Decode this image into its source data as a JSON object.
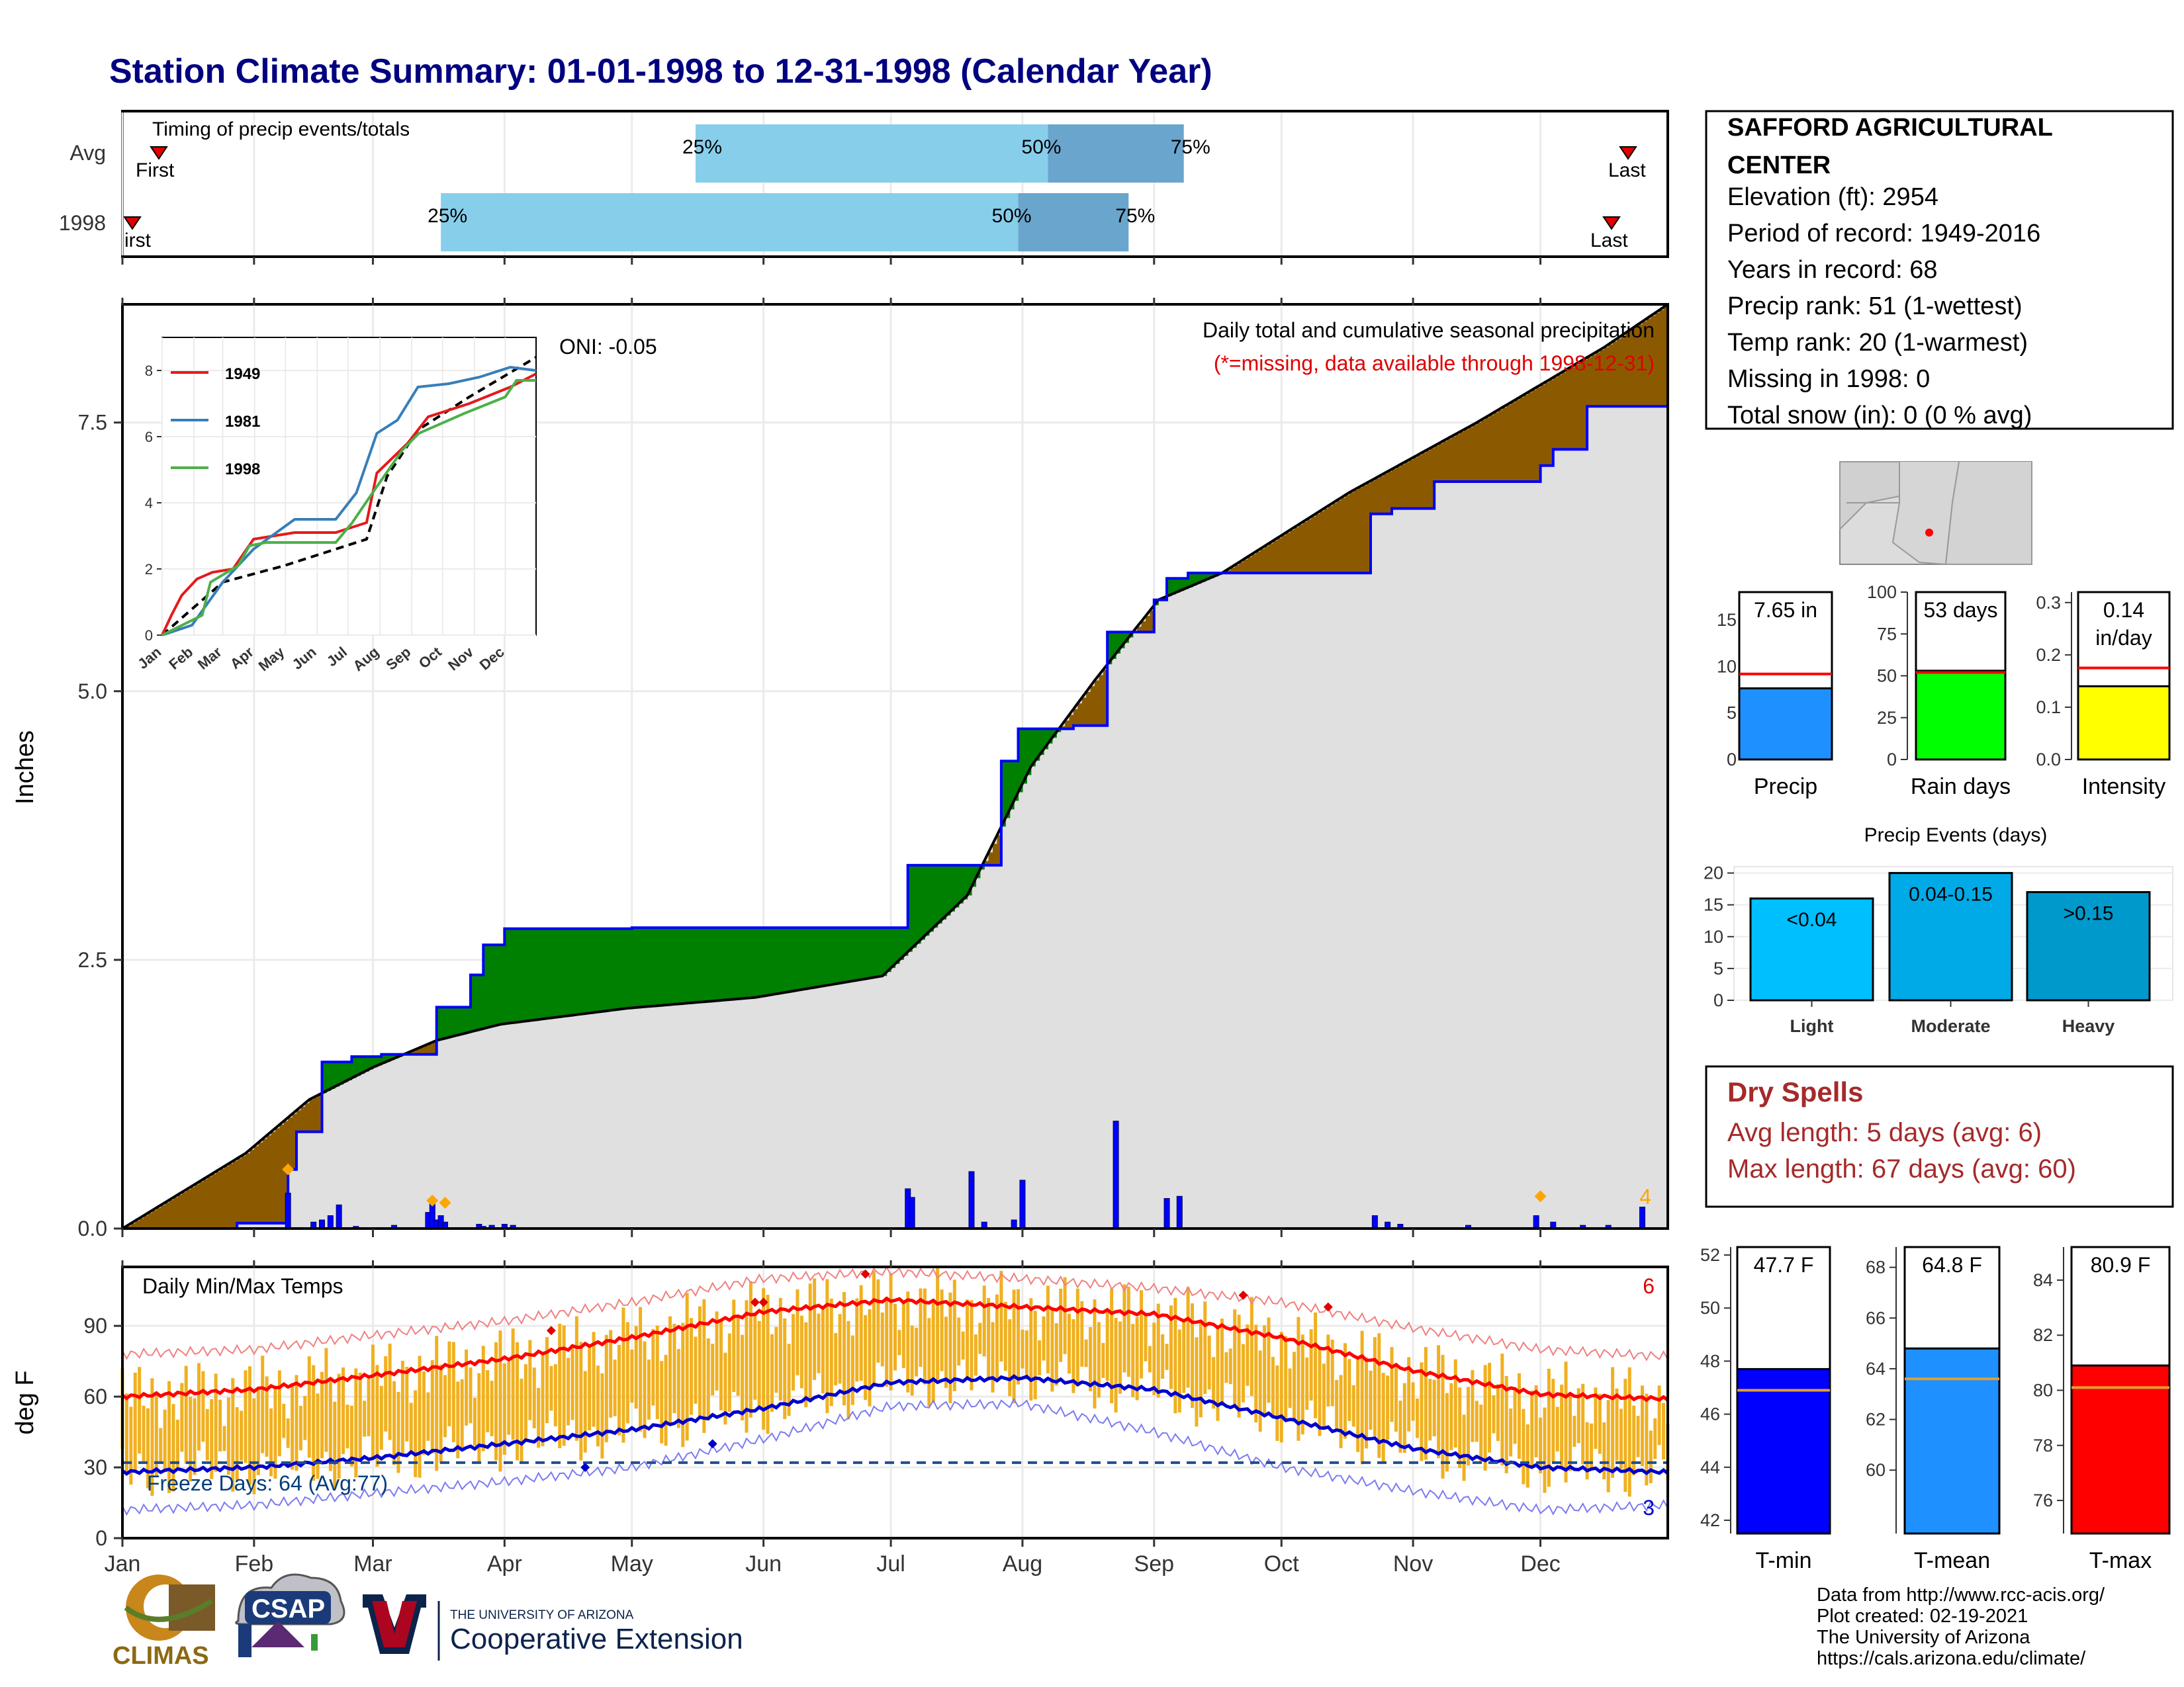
{
  "title": "Station Climate Summary: 01-01-1998 to 12-31-1998 (Calendar Year)",
  "months": [
    "Jan",
    "Feb",
    "Mar",
    "Apr",
    "May",
    "Jun",
    "Jul",
    "Aug",
    "Sep",
    "Oct",
    "Nov",
    "Dec"
  ],
  "timing": {
    "label": "Timing of precip events/totals",
    "rows": [
      "Avg",
      "1998"
    ],
    "first_label": "First",
    "first_label_1998": "irst",
    "last_label": "Last",
    "pct_labels": [
      "25%",
      "50%",
      "75%"
    ]
  },
  "station": {
    "name_line1": "SAFFORD AGRICULTURAL",
    "name_line2": "CENTER",
    "elevation": "Elevation (ft): 2954",
    "period": "Period of record: 1949-2016",
    "years": "Years in record: 68",
    "precip_rank": "Precip rank: 51 (1-wettest)",
    "temp_rank": "Temp rank: 20 (1-warmest)",
    "missing": "Missing in 1998: 0",
    "snow": "Total snow (in): 0 (0 % avg)"
  },
  "precip_panel": {
    "ylabel": "Inches",
    "oni": "ONI: -0.05",
    "desc": "Daily total and cumulative seasonal precipitation",
    "missing_note": "(*=missing, data available through 1998-12-31)",
    "count_label": "4",
    "yticks": [
      "0.0",
      "2.5",
      "5.0",
      "7.5"
    ]
  },
  "temp_panel": {
    "label": "Daily Min/Max Temps",
    "ylabel": "deg F",
    "freeze": "Freeze Days: 64 (Avg:77)",
    "count_top": "6",
    "count_bottom": "3",
    "yticks": [
      "0",
      "30",
      "60",
      "90"
    ]
  },
  "colors": {
    "observed_line": "#0000ff",
    "above_fill": "#008000",
    "below_fill": "#8b5a00",
    "avg_fill": "#e0e0e0",
    "temp_bars": "#f0b020",
    "max_line": "#ff0000",
    "min_line": "#0000cd",
    "title": "#000080",
    "dry_spell": "#a52a2a"
  },
  "dry_spells": {
    "title": "Dry Spells",
    "avg": "Avg length: 5 days (avg: 6)",
    "max": "Max length: 67 days (avg: 60)"
  },
  "precip_bars": {
    "precip": {
      "label": "Precip",
      "value_text": "7.65 in",
      "value": 7.65,
      "avg": 9.2,
      "yticks": [
        "0",
        "5",
        "10",
        "15"
      ]
    },
    "raindays": {
      "label": "Rain days",
      "value_text": "53 days",
      "value": 53,
      "avg": 52,
      "yticks": [
        "0",
        "25",
        "50",
        "75",
        "100"
      ]
    },
    "intensity": {
      "label": "Intensity",
      "value_text": "0.14",
      "value_text2": "in/day",
      "value": 0.14,
      "avg": 0.175,
      "yticks": [
        "0.0",
        "0.1",
        "0.2",
        "0.3"
      ]
    }
  },
  "events": {
    "title": "Precip Events (days)",
    "categories": [
      "Light",
      "Moderate",
      "Heavy"
    ],
    "labels": [
      "<0.04",
      "0.04-0.15",
      ">0.15"
    ],
    "values": [
      16,
      20,
      17
    ],
    "yticks": [
      "0",
      "5",
      "10",
      "15",
      "20"
    ]
  },
  "temp_bars": {
    "tmin": {
      "label": "T-min",
      "value_text": "47.7 F",
      "value": 47.7,
      "avg": 46.9,
      "yticks": [
        "42",
        "44",
        "46",
        "48",
        "50",
        "52"
      ]
    },
    "tmean": {
      "label": "T-mean",
      "value_text": "64.8 F",
      "value": 64.8,
      "avg": 63.6,
      "yticks": [
        "60",
        "62",
        "64",
        "66",
        "68"
      ]
    },
    "tmax": {
      "label": "T-max",
      "value_text": "80.9 F",
      "value": 80.9,
      "avg": 80.1,
      "yticks": [
        "76",
        "78",
        "80",
        "82",
        "84"
      ]
    }
  },
  "footer": {
    "line1": "Data from http://www.rcc-acis.org/",
    "line2": "Plot created: 02-19-2021",
    "line3": "The University of Arizona",
    "line4": "https://cals.arizona.edu/climate/",
    "climas": "CLIMAS",
    "csap": "CSAP",
    "ua_small": "THE UNIVERSITY OF ARIZONA",
    "ua_big": "Cooperative Extension"
  },
  "chart_data": [
    {
      "type": "bar",
      "title": "Timing of precip events/totals",
      "categories": [
        "Avg",
        "1998"
      ],
      "series": [
        {
          "name": "Avg",
          "first": "Jan 10",
          "p25": "May 16",
          "p50": "Aug 7",
          "p75": "Sep 8",
          "last": "Dec 29"
        },
        {
          "name": "1998",
          "first": "Jan 2",
          "p25": "Mar 17",
          "p50": "Jul 31",
          "p75": "Aug 26",
          "last": "Dec 25"
        }
      ]
    },
    {
      "type": "area",
      "title": "Daily total and cumulative seasonal precipitation",
      "ylabel": "Inches",
      "ylim": [
        0,
        8.6
      ],
      "x_unit": "day of year",
      "series": [
        {
          "name": "1998",
          "x": [
            1,
            28,
            40,
            42,
            48,
            55,
            62,
            75,
            80,
            83,
            86,
            91,
            102,
            121,
            150,
            170,
            180,
            186,
            190,
            208,
            212,
            225,
            233,
            244,
            247,
            251,
            252,
            265,
            280,
            295,
            300,
            310,
            335,
            338,
            346,
            365
          ],
          "y": [
            0.0,
            0.05,
            0.55,
            0.9,
            1.55,
            1.6,
            1.62,
            2.06,
            2.06,
            2.36,
            2.64,
            2.79,
            2.79,
            2.8,
            2.8,
            2.8,
            2.8,
            3.38,
            3.38,
            4.35,
            4.65,
            4.68,
            5.55,
            5.85,
            6.05,
            6.05,
            6.1,
            6.1,
            6.1,
            6.65,
            6.7,
            6.95,
            7.1,
            7.25,
            7.65,
            7.65
          ]
        },
        {
          "name": "avg",
          "x": [
            1,
            30,
            45,
            60,
            75,
            90,
            120,
            150,
            180,
            200,
            215,
            230,
            245,
            260,
            290,
            320,
            350,
            365
          ],
          "y": [
            0.0,
            0.7,
            1.2,
            1.5,
            1.75,
            1.9,
            2.05,
            2.15,
            2.35,
            3.1,
            4.3,
            5.1,
            5.85,
            6.1,
            6.85,
            7.5,
            8.2,
            8.6
          ]
        }
      ],
      "daily": [
        {
          "x": 40,
          "y": 0.33
        },
        {
          "x": 46,
          "y": 0.06
        },
        {
          "x": 48,
          "y": 0.08
        },
        {
          "x": 50,
          "y": 0.12
        },
        {
          "x": 52,
          "y": 0.22
        },
        {
          "x": 56,
          "y": 0.02
        },
        {
          "x": 65,
          "y": 0.03
        },
        {
          "x": 73,
          "y": 0.15
        },
        {
          "x": 74,
          "y": 0.28
        },
        {
          "x": 75,
          "y": 0.08
        },
        {
          "x": 76,
          "y": 0.12
        },
        {
          "x": 77,
          "y": 0.06
        },
        {
          "x": 85,
          "y": 0.04
        },
        {
          "x": 86,
          "y": 0.02
        },
        {
          "x": 88,
          "y": 0.03
        },
        {
          "x": 91,
          "y": 0.04
        },
        {
          "x": 93,
          "y": 0.03
        },
        {
          "x": 186,
          "y": 0.37
        },
        {
          "x": 187,
          "y": 0.29
        },
        {
          "x": 201,
          "y": 0.53
        },
        {
          "x": 204,
          "y": 0.06
        },
        {
          "x": 211,
          "y": 0.08
        },
        {
          "x": 213,
          "y": 0.45
        },
        {
          "x": 235,
          "y": 1.0
        },
        {
          "x": 247,
          "y": 0.28
        },
        {
          "x": 250,
          "y": 0.3
        },
        {
          "x": 296,
          "y": 0.12
        },
        {
          "x": 299,
          "y": 0.06
        },
        {
          "x": 302,
          "y": 0.04
        },
        {
          "x": 318,
          "y": 0.03
        },
        {
          "x": 334,
          "y": 0.12
        },
        {
          "x": 338,
          "y": 0.06
        },
        {
          "x": 345,
          "y": 0.03
        },
        {
          "x": 351,
          "y": 0.03
        },
        {
          "x": 359,
          "y": 0.2
        }
      ]
    },
    {
      "type": "line",
      "title": "Daily Min/Max Temps",
      "ylabel": "deg F",
      "ylim": [
        0,
        115
      ],
      "x_unit": "day of year",
      "series": [
        {
          "name": "normal max",
          "x": [
            1,
            32,
            60,
            91,
            121,
            152,
            182,
            213,
            244,
            274,
            305,
            335,
            365
          ],
          "y": [
            60,
            63,
            69,
            76,
            85,
            96,
            101,
            98,
            95,
            85,
            71,
            61,
            59
          ]
        },
        {
          "name": "normal min",
          "x": [
            1,
            32,
            60,
            91,
            121,
            152,
            182,
            213,
            244,
            274,
            305,
            335,
            365
          ],
          "y": [
            28,
            30,
            34,
            40,
            46,
            55,
            66,
            68,
            63,
            51,
            38,
            30,
            28
          ]
        },
        {
          "name": "record high",
          "x": [
            1,
            32,
            60,
            91,
            121,
            152,
            182,
            213,
            244,
            274,
            305,
            335,
            365
          ],
          "y": [
            78,
            80,
            86,
            92,
            100,
            110,
            113,
            110,
            106,
            100,
            89,
            80,
            77
          ]
        },
        {
          "name": "record low",
          "x": [
            1,
            32,
            60,
            91,
            121,
            152,
            182,
            213,
            244,
            274,
            305,
            335,
            365
          ],
          "y": [
            12,
            14,
            19,
            24,
            30,
            42,
            56,
            57,
            45,
            30,
            20,
            12,
            14
          ]
        }
      ],
      "freeze_line": 32
    },
    {
      "type": "bar",
      "title": "Precip",
      "categories": [
        "Precip"
      ],
      "values": [
        7.65
      ],
      "avg": 9.2,
      "ylim": [
        0,
        18
      ]
    },
    {
      "type": "bar",
      "title": "Rain days",
      "categories": [
        "Rain days"
      ],
      "values": [
        53
      ],
      "avg": 52,
      "ylim": [
        0,
        100
      ]
    },
    {
      "type": "bar",
      "title": "Intensity",
      "categories": [
        "Intensity"
      ],
      "values": [
        0.14
      ],
      "avg": 0.175,
      "ylim": [
        0,
        0.32
      ]
    },
    {
      "type": "bar",
      "title": "Precip Events (days)",
      "categories": [
        "Light",
        "Moderate",
        "Heavy"
      ],
      "values": [
        16,
        20,
        17
      ],
      "ylim": [
        0,
        21
      ]
    },
    {
      "type": "bar",
      "title": "T-min",
      "categories": [
        "T-min"
      ],
      "values": [
        47.7
      ],
      "avg": 46.9,
      "ylim": [
        41.5,
        52.3
      ]
    },
    {
      "type": "bar",
      "title": "T-mean",
      "categories": [
        "T-mean"
      ],
      "values": [
        64.8
      ],
      "avg": 63.6,
      "ylim": [
        57.5,
        68.8
      ]
    },
    {
      "type": "bar",
      "title": "T-max",
      "categories": [
        "T-max"
      ],
      "values": [
        80.9
      ],
      "avg": 80.1,
      "ylim": [
        74.8,
        85.2
      ]
    }
  ]
}
